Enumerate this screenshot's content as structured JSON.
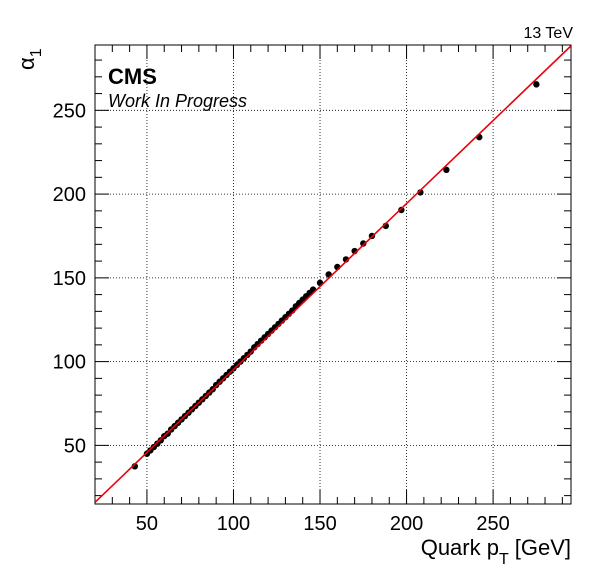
{
  "header": {
    "energy": "13 TeV",
    "experiment": "CMS",
    "status": "Work In Progress"
  },
  "chart_data": {
    "type": "scatter",
    "xlabel": "Quark p_T [GeV]",
    "xlabel_main": "Quark p",
    "xlabel_sub": "T",
    "xlabel_unit": "[GeV]",
    "ylabel": "α_1",
    "ylabel_main": "α",
    "ylabel_sub": "1",
    "xlim": [
      20,
      295
    ],
    "ylim": [
      15,
      289
    ],
    "xticks": [
      50,
      100,
      150,
      200,
      250
    ],
    "yticks": [
      50,
      100,
      150,
      200,
      250
    ],
    "grid": true,
    "point_color": "#000000",
    "line_color": "#e8000b",
    "series": [
      {
        "kind": "points",
        "x": [
          43,
          50,
          52,
          54,
          56,
          58,
          60,
          62,
          64,
          66,
          68,
          70,
          72,
          74,
          76,
          78,
          80,
          82,
          84,
          86,
          88,
          90,
          92,
          94,
          96,
          98,
          100,
          102,
          104,
          106,
          108,
          110,
          112,
          114,
          116,
          118,
          120,
          122,
          124,
          126,
          128,
          130,
          132,
          134,
          136,
          138,
          140,
          142,
          144,
          146,
          150,
          155,
          160,
          165,
          170,
          175,
          180,
          188,
          197,
          208,
          223,
          242,
          275
        ],
        "y": [
          37.5,
          45,
          47,
          49,
          51,
          53,
          55.5,
          57,
          59.5,
          61.5,
          63.5,
          65.5,
          67.5,
          69.5,
          71.5,
          73.5,
          75.5,
          77.5,
          79.5,
          81.5,
          83.5,
          86,
          88,
          90,
          92,
          94,
          96,
          98,
          100,
          102,
          104,
          106,
          108.5,
          110.5,
          112.5,
          114.5,
          116.5,
          118.5,
          120.5,
          122.5,
          124.5,
          126.5,
          128.5,
          130.5,
          133,
          135,
          137,
          139,
          141,
          143,
          147,
          152,
          156.5,
          161,
          166,
          170.5,
          175,
          181,
          190.5,
          201,
          214.5,
          234,
          265.5
        ]
      },
      {
        "kind": "fit",
        "x": [
          20,
          295
        ],
        "y": [
          16,
          288.5
        ]
      }
    ]
  }
}
